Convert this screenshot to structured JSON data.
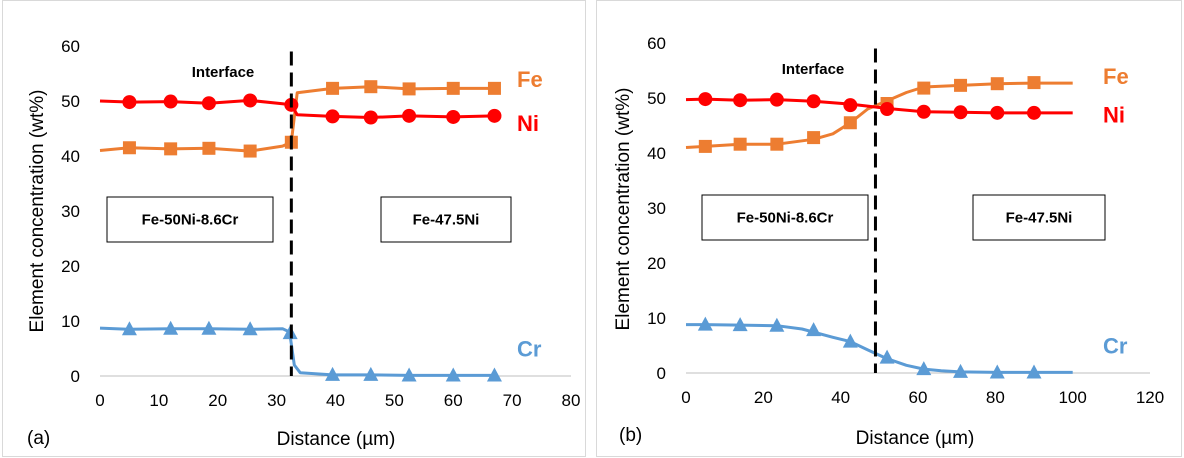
{
  "chart_data": [
    {
      "panel_label": "(a)",
      "type": "line",
      "xlabel": "Distance (µm)",
      "ylabel": "Element concentration (wt%)",
      "xlim": [
        0,
        80
      ],
      "ylim": [
        0,
        60
      ],
      "xticks": [
        "0",
        "10",
        "20",
        "30",
        "40",
        "50",
        "60",
        "70",
        "80"
      ],
      "yticks": [
        "0",
        "10",
        "20",
        "30",
        "40",
        "50",
        "60"
      ],
      "grid": "none",
      "interface_x": 32.5,
      "annotations": {
        "interface": "Interface",
        "left_alloy": "Fe-50Ni-8.6Cr",
        "right_alloy": "Fe-47.5Ni"
      },
      "series": [
        {
          "name": "Fe",
          "color": "#ed7d31",
          "marker": "square",
          "x": [
            0,
            5,
            12,
            18.5,
            25.5,
            31,
            32.5,
            33.5,
            39.5,
            46,
            52.5,
            60,
            67
          ],
          "y": [
            41,
            41.5,
            41.3,
            41.4,
            40.9,
            41.8,
            42.5,
            51.5,
            52.3,
            52.6,
            52.2,
            52.3,
            52.3
          ],
          "markers_x": [
            5,
            12,
            18.5,
            25.5,
            32.5,
            39.5,
            46,
            52.5,
            60,
            67
          ],
          "markers_y": [
            41.5,
            41.3,
            41.4,
            40.9,
            42.5,
            52.3,
            52.6,
            52.2,
            52.3,
            52.3
          ]
        },
        {
          "name": "Ni",
          "color": "#ff0000",
          "marker": "circle",
          "x": [
            0,
            5,
            12,
            18.5,
            25.5,
            31,
            32.5,
            33.5,
            39.5,
            46,
            52.5,
            60,
            67
          ],
          "y": [
            50,
            49.8,
            49.9,
            49.6,
            50.1,
            49.5,
            49.3,
            47.5,
            47.2,
            47.0,
            47.3,
            47.1,
            47.3
          ],
          "markers_x": [
            5,
            12,
            18.5,
            25.5,
            32.5,
            39.5,
            46,
            52.5,
            60,
            67
          ],
          "markers_y": [
            49.8,
            49.9,
            49.6,
            50.1,
            49.3,
            47.2,
            47.0,
            47.3,
            47.1,
            47.3
          ],
          "label_y": 42.5
        },
        {
          "name": "Cr",
          "color": "#5b9bd5",
          "marker": "triangle",
          "x": [
            0,
            5,
            12,
            18.5,
            25.5,
            31,
            32.2,
            33,
            34,
            39.5,
            46,
            52.5,
            60,
            67
          ],
          "y": [
            8.7,
            8.5,
            8.6,
            8.6,
            8.5,
            8.6,
            8.0,
            2.0,
            0.6,
            0.2,
            0.2,
            0.1,
            0.1,
            0.1
          ],
          "markers_x": [
            5,
            12,
            18.5,
            25.5,
            32.3,
            39.5,
            46,
            52.5,
            60,
            67
          ],
          "markers_y": [
            8.5,
            8.6,
            8.6,
            8.5,
            7.8,
            0.2,
            0.2,
            0.1,
            0.1,
            0.1
          ]
        }
      ]
    },
    {
      "panel_label": "(b)",
      "type": "line",
      "xlabel": "Distance (µm)",
      "ylabel": "Element concentration (wt%)",
      "xlim": [
        0,
        120
      ],
      "ylim": [
        0,
        60
      ],
      "xticks": [
        "0",
        "20",
        "40",
        "60",
        "80",
        "100",
        "120"
      ],
      "yticks": [
        "0",
        "10",
        "20",
        "30",
        "40",
        "50",
        "60"
      ],
      "grid": "none",
      "interface_x": 49,
      "annotations": {
        "interface": "Interface",
        "left_alloy": "Fe-50Ni-8.6Cr",
        "right_alloy": "Fe-47.5Ni"
      },
      "series": [
        {
          "name": "Fe",
          "color": "#ed7d31",
          "marker": "square",
          "x": [
            0,
            5,
            14,
            23.5,
            33,
            38,
            42.5,
            47,
            52,
            57,
            61.5,
            71,
            80.5,
            90,
            100
          ],
          "y": [
            41,
            41.2,
            41.6,
            41.6,
            42.5,
            43.5,
            45.5,
            48.0,
            49.5,
            51.0,
            52.0,
            52.3,
            52.6,
            52.7,
            52.7
          ],
          "markers_x": [
            5,
            14,
            23.5,
            33,
            42.5,
            52,
            61.5,
            71,
            80.5,
            90
          ],
          "markers_y": [
            41.2,
            41.6,
            41.6,
            42.8,
            45.5,
            49.0,
            51.8,
            52.3,
            52.6,
            52.8
          ]
        },
        {
          "name": "Ni",
          "color": "#ff0000",
          "marker": "circle",
          "x": [
            0,
            5,
            14,
            23.5,
            33,
            42.5,
            52,
            61.5,
            71,
            80.5,
            90,
            100
          ],
          "y": [
            49.7,
            49.8,
            49.6,
            49.7,
            49.4,
            48.9,
            48.1,
            47.5,
            47.4,
            47.3,
            47.3,
            47.3
          ],
          "markers_x": [
            5,
            14,
            23.5,
            33,
            42.5,
            52,
            61.5,
            71,
            80.5,
            90
          ],
          "markers_y": [
            49.8,
            49.6,
            49.7,
            49.4,
            48.7,
            48.0,
            47.5,
            47.4,
            47.3,
            47.3
          ],
          "label_y": 47.0
        },
        {
          "name": "Cr",
          "color": "#5b9bd5",
          "marker": "triangle",
          "x": [
            0,
            5,
            14,
            23.5,
            30,
            38,
            42.5,
            47,
            52,
            57,
            61.5,
            66,
            71,
            80.5,
            90,
            100
          ],
          "y": [
            8.8,
            8.8,
            8.7,
            8.6,
            8.0,
            6.5,
            5.7,
            4.2,
            2.6,
            1.4,
            0.7,
            0.4,
            0.2,
            0.1,
            0.1,
            0.1
          ],
          "markers_x": [
            5,
            14,
            23.5,
            33,
            42.5,
            52,
            61.5,
            71,
            80.5,
            90
          ],
          "markers_y": [
            8.8,
            8.7,
            8.6,
            7.8,
            5.7,
            2.8,
            0.7,
            0.2,
            0.1,
            0.1
          ]
        }
      ]
    }
  ]
}
